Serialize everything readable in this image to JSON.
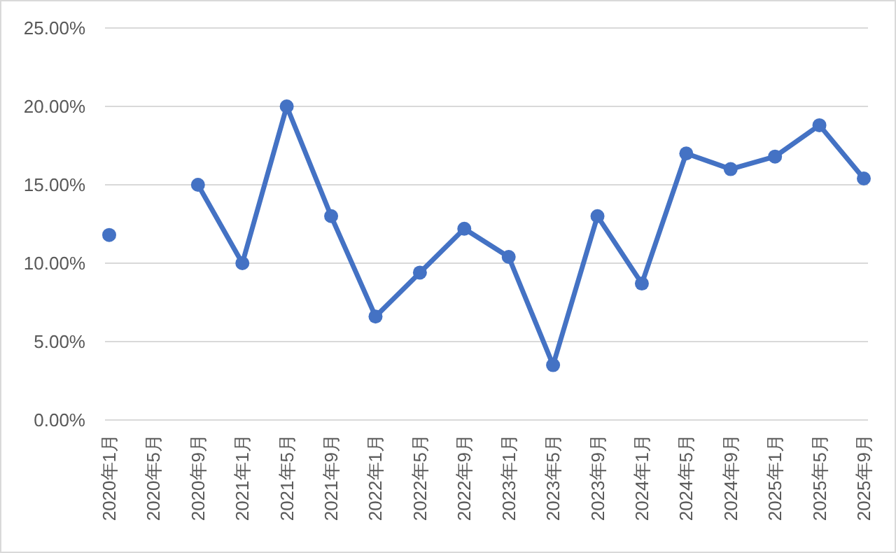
{
  "chart_data": {
    "type": "line",
    "categories": [
      "2020年1月",
      "2020年5月",
      "2020年9月",
      "2021年1月",
      "2021年5月",
      "2021年9月",
      "2022年1月",
      "2022年5月",
      "2022年9月",
      "2023年1月",
      "2023年5月",
      "2023年9月",
      "2024年1月",
      "2024年5月",
      "2024年9月",
      "2025年1月",
      "2025年5月",
      "2025年9月"
    ],
    "series": [
      {
        "color": "#4472c4",
        "values": [
          11.8,
          null,
          15.0,
          10.0,
          20.0,
          13.0,
          6.6,
          9.4,
          12.2,
          10.4,
          3.5,
          13.0,
          8.7,
          17.0,
          16.0,
          16.8,
          18.8,
          15.4
        ]
      }
    ],
    "ylim": [
      0,
      25
    ],
    "yticks": [
      {
        "value": 0,
        "label": "0.00%"
      },
      {
        "value": 5,
        "label": "5.00%"
      },
      {
        "value": 10,
        "label": "10.00%"
      },
      {
        "value": 15,
        "label": "15.00%"
      },
      {
        "value": 20,
        "label": "20.00%"
      },
      {
        "value": 25,
        "label": "25.00%"
      }
    ],
    "grid": "y",
    "marker": "circle",
    "line_style": "solid"
  }
}
